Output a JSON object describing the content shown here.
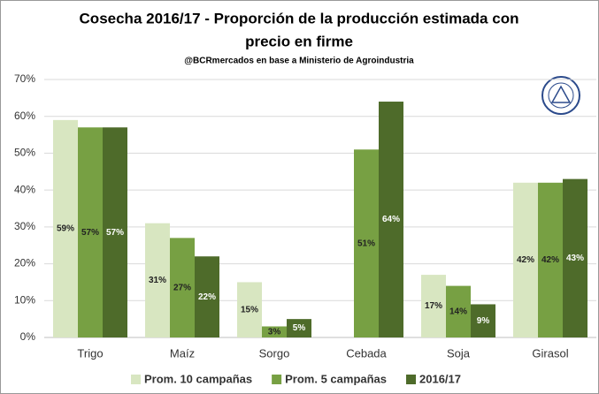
{
  "chart_data": {
    "type": "bar",
    "title": "Cosecha 2016/17 - Proporción de la producción estimada con precio en firme",
    "subtitle": "@BCRmercados en base a Ministerio de Agroindustria",
    "categories": [
      "Trigo",
      "Maíz",
      "Sorgo",
      "Cebada",
      "Soja",
      "Girasol"
    ],
    "series": [
      {
        "name": "Prom. 10 campañas",
        "color": "#d8e6c1",
        "values": [
          59,
          31,
          15,
          null,
          17,
          42
        ],
        "value_labels": [
          "59%",
          "31%",
          "15%",
          null,
          "17%",
          "42%"
        ]
      },
      {
        "name": "Prom. 5 campañas",
        "color": "#77a043",
        "values": [
          57,
          27,
          3,
          51,
          14,
          42
        ],
        "value_labels": [
          "57%",
          "27%",
          "3%",
          "51%",
          "14%",
          "42%"
        ]
      },
      {
        "name": "2016/17",
        "color": "#4e6b2a",
        "values": [
          57,
          22,
          5,
          64,
          9,
          43
        ],
        "value_labels": [
          "57%",
          "22%",
          "5%",
          "64%",
          "9%",
          "43%"
        ]
      }
    ],
    "ylim": [
      0,
      70
    ],
    "yticks": [
      {
        "value": 0,
        "label": "0%"
      },
      {
        "value": 10,
        "label": "10%"
      },
      {
        "value": 20,
        "label": "20%"
      },
      {
        "value": 30,
        "label": "30%"
      },
      {
        "value": 40,
        "label": "40%"
      },
      {
        "value": 50,
        "label": "50%"
      },
      {
        "value": 60,
        "label": "60%"
      },
      {
        "value": 70,
        "label": "70%"
      }
    ],
    "grid": true,
    "legend": "bottom"
  }
}
